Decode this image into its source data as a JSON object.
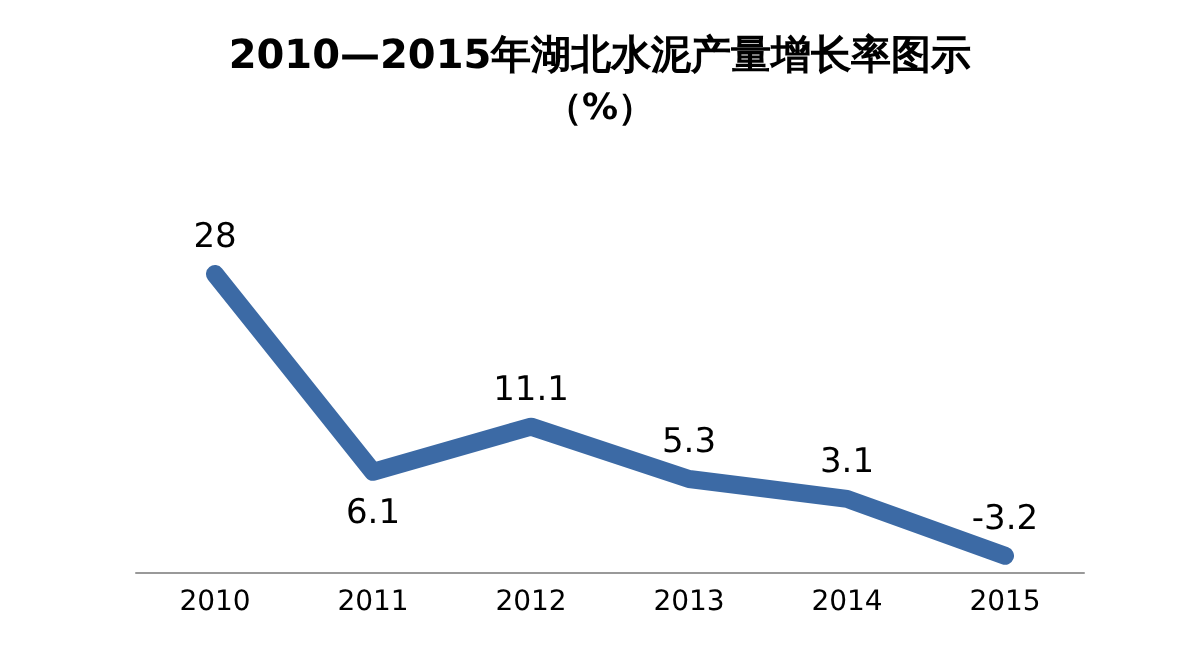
{
  "chart_data": {
    "type": "line",
    "title": "2010—2015年湖北水泥产量增长率图示",
    "subtitle": "（%）",
    "categories": [
      "2010",
      "2011",
      "2012",
      "2013",
      "2014",
      "2015"
    ],
    "series": [
      {
        "color": "#3c6aa5",
        "values": [
          28,
          6.1,
          11.1,
          5.3,
          3.1,
          -3.2
        ]
      }
    ],
    "data_labels": true,
    "marker": "none"
  }
}
